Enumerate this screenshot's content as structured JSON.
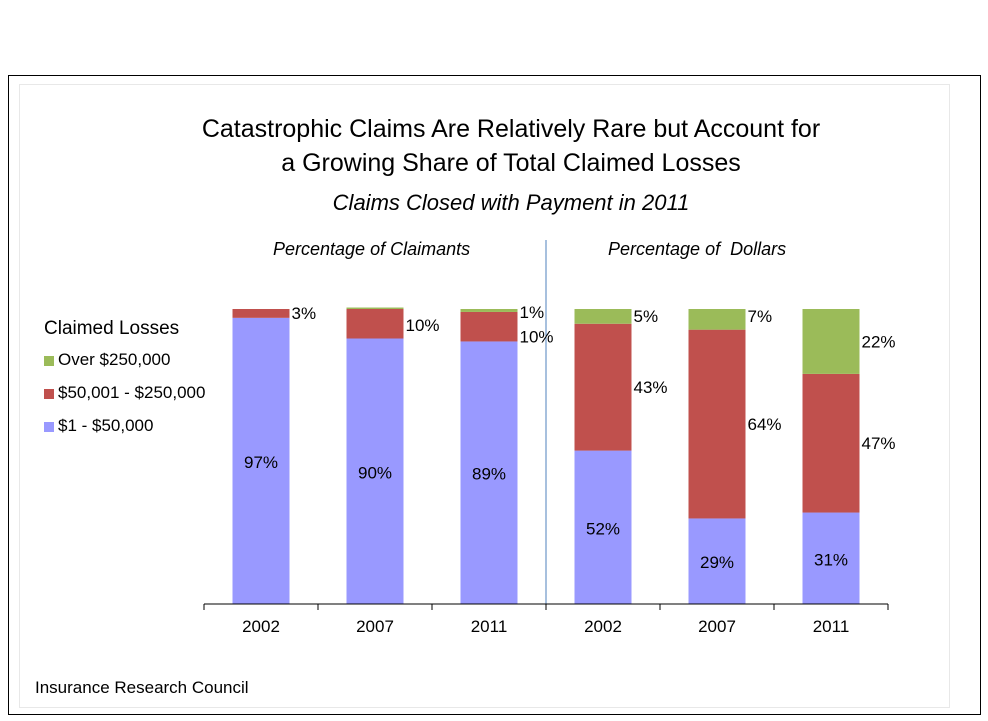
{
  "chart_data": {
    "type": "bar",
    "stacked": true,
    "title": "Catastrophic Claims Are Relatively Rare but Account for a Growing Share of Total Claimed Losses",
    "title_lines": [
      "Catastrophic Claims Are Relatively Rare but Account for",
      "a Growing Share of Total Claimed Losses"
    ],
    "subtitle": "Claims Closed with Payment in 2011",
    "panels": [
      "Percentage of Claimants",
      "Percentage of  Dollars"
    ],
    "categories": [
      "2002",
      "2007",
      "2011",
      "2002",
      "2007",
      "2011"
    ],
    "legend_title": "Claimed Losses",
    "legend_position": "left",
    "ylim": [
      0,
      100
    ],
    "series": [
      {
        "name": "$1 - $50,000",
        "color": "#9999ff",
        "values": [
          97,
          90,
          89,
          52,
          29,
          31
        ],
        "labels": [
          "97%",
          "90%",
          "89%",
          "52%",
          "29%",
          "31%"
        ]
      },
      {
        "name": "$50,001 - $250,000",
        "color": "#c0504d",
        "values": [
          3,
          10,
          10,
          43,
          64,
          47
        ],
        "labels": [
          "3%",
          "10%",
          "10%",
          "43%",
          "64%",
          "47%"
        ]
      },
      {
        "name": "Over $250,000",
        "color": "#9bbb59",
        "values": [
          0,
          0.5,
          1,
          5,
          7,
          22
        ],
        "labels": [
          "",
          "",
          "1%",
          "5%",
          "7%",
          "22%"
        ]
      }
    ],
    "legend_order": [
      "Over $250,000",
      "$50,001 - $250,000",
      "$1 - $50,000"
    ],
    "source": "Insurance Research Council"
  }
}
